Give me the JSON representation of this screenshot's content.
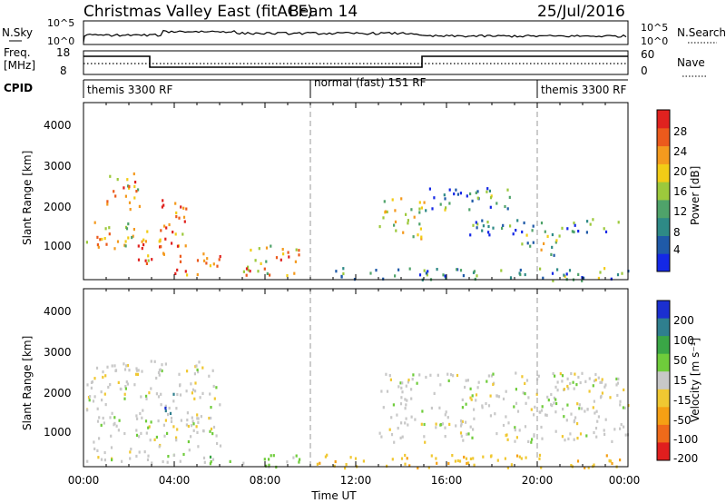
{
  "header": {
    "title": "Christmas Valley East (fitACF)",
    "beam": "Beam 14",
    "date": "25/Jul/2016"
  },
  "top_panels": {
    "nsky_label": "N.Sky",
    "nsearch_label": "N.Search",
    "noise_ticks": [
      "10^5",
      "10^0"
    ],
    "freq_label_1": "Freq.",
    "freq_label_2": "[MHz]",
    "freq_ticks": [
      "18",
      "8"
    ],
    "nave_ticks": [
      "60",
      "0"
    ],
    "nave_label": "Nave",
    "cpid_label": "CPID",
    "cpid_segments": [
      "themis 3300 RF",
      "normal (fast) 151 RF",
      "themis 3300 RF"
    ]
  },
  "x_axis": {
    "label": "Time UT",
    "ticks": [
      "00:00",
      "04:00",
      "08:00",
      "12:00",
      "16:00",
      "20:00",
      "00:00"
    ]
  },
  "power_panel": {
    "ylabel": "Slant Range [km]",
    "yticks": [
      "1000",
      "2000",
      "3000",
      "4000"
    ],
    "colorbar_label": "Power [dB]",
    "colorbar_ticks": [
      "4",
      "8",
      "12",
      "16",
      "20",
      "24",
      "28"
    ],
    "colors": [
      "#1428e6",
      "#1f5aa8",
      "#2e8a86",
      "#4fa36a",
      "#9cc93c",
      "#f2cc16",
      "#f49a1e",
      "#ec5a1c",
      "#e0221f"
    ]
  },
  "velocity_panel": {
    "ylabel": "Slant Range [km]",
    "yticks": [
      "1000",
      "2000",
      "3000",
      "4000"
    ],
    "colorbar_label": "Velocity [m s⁻¹]",
    "colorbar_ticks": [
      "200",
      "100",
      "50",
      "15",
      "-15",
      "-50",
      "-100",
      "-200"
    ],
    "colors": [
      "#1b2fd0",
      "#2f7f8e",
      "#3aa646",
      "#6fcc3b",
      "#c8c8c8",
      "#f0c832",
      "#f5a014",
      "#ef6a1a",
      "#e01e1e"
    ]
  },
  "chart_data": [
    {
      "type": "heatmap",
      "title": "Power [dB]",
      "xlabel": "Time UT",
      "ylabel": "Slant Range [km]",
      "xlim": [
        0,
        24
      ],
      "ylim": [
        180,
        4500
      ],
      "colorbar_range": [
        0,
        32
      ],
      "cpid_changes": [
        {
          "start": 0,
          "end": 10,
          "name": "themis 3300 RF"
        },
        {
          "start": 10,
          "end": 20,
          "name": "normal (fast) 151 RF"
        },
        {
          "start": 20,
          "end": 24,
          "name": "themis 3300 RF"
        }
      ],
      "echo_regions": [
        {
          "t0": 0.1,
          "t1": 2.2,
          "r0": 900,
          "r1": 1700,
          "value": 20
        },
        {
          "t0": 1.0,
          "t1": 2.5,
          "r0": 1800,
          "r1": 2800,
          "value": 22
        },
        {
          "t0": 2.2,
          "t1": 3.8,
          "r0": 600,
          "r1": 1400,
          "value": 24
        },
        {
          "t0": 3.0,
          "t1": 4.5,
          "r0": 1000,
          "r1": 2200,
          "value": 26
        },
        {
          "t0": 4.0,
          "t1": 6.0,
          "r0": 300,
          "r1": 900,
          "value": 27
        },
        {
          "t0": 7.0,
          "t1": 9.5,
          "r0": 300,
          "r1": 1100,
          "value": 22
        },
        {
          "t0": 11.0,
          "t1": 24.0,
          "r0": 180,
          "r1": 500,
          "value": 10
        },
        {
          "t0": 13.0,
          "t1": 15.0,
          "r0": 1200,
          "r1": 2200,
          "value": 16
        },
        {
          "t0": 15.0,
          "t1": 19.0,
          "r0": 1900,
          "r1": 2500,
          "value": 10
        },
        {
          "t0": 17.0,
          "t1": 24.0,
          "r0": 1300,
          "r1": 1700,
          "value": 9
        },
        {
          "t0": 19.0,
          "t1": 21.0,
          "r0": 800,
          "r1": 1300,
          "value": 14
        }
      ]
    },
    {
      "type": "heatmap",
      "title": "Velocity [m s⁻¹]",
      "xlabel": "Time UT",
      "ylabel": "Slant Range [km]",
      "xlim": [
        0,
        24
      ],
      "ylim": [
        180,
        4500
      ],
      "colorbar_range": [
        -200,
        200
      ],
      "echo_regions": [
        {
          "t0": 0.1,
          "t1": 6.0,
          "r0": 300,
          "r1": 2800,
          "value": 0
        },
        {
          "t0": 3.5,
          "t1": 4.0,
          "r0": 1500,
          "r1": 2000,
          "value": 150
        },
        {
          "t0": 5.0,
          "t1": 9.5,
          "r0": 200,
          "r1": 500,
          "value": 40
        },
        {
          "t0": 10.0,
          "t1": 24.0,
          "r0": 180,
          "r1": 500,
          "value": -50
        },
        {
          "t0": 13.0,
          "t1": 24.0,
          "r0": 800,
          "r1": 2500,
          "value": 0
        }
      ]
    }
  ]
}
